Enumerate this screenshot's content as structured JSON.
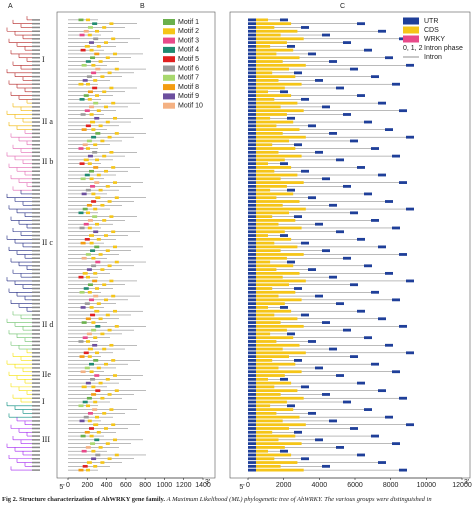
{
  "panels": {
    "a": "A",
    "b": "B",
    "c": "C"
  },
  "groups": [
    "I",
    "II a",
    "II b",
    "II c",
    "II d",
    "IIe",
    "I",
    "III"
  ],
  "motif_legend": [
    {
      "name": "Motif 1",
      "color": "#6ab04c"
    },
    {
      "name": "Motif 2",
      "color": "#f5c518"
    },
    {
      "name": "Motif 3",
      "color": "#e84a8a"
    },
    {
      "name": "Motif 4",
      "color": "#1f8a70"
    },
    {
      "name": "Motif 5",
      "color": "#e02020"
    },
    {
      "name": "Motif 6",
      "color": "#9a9a9a"
    },
    {
      "name": "Motif 7",
      "color": "#a8d86e"
    },
    {
      "name": "Motif 8",
      "color": "#f39c12"
    },
    {
      "name": "Motif 9",
      "color": "#6c4f9e"
    },
    {
      "name": "Motif 10",
      "color": "#f4b183"
    }
  ],
  "structure_legend": [
    {
      "name": "UTR",
      "color": "#1f3f99"
    },
    {
      "name": "CDS",
      "color": "#f5c518"
    },
    {
      "name": "WRKY",
      "color": "#e84a8a"
    }
  ],
  "intron_phase_label": "0, 1, 2",
  "intron_phase_text": "Intron phase",
  "intron_label": "Intron",
  "b_axis": {
    "ticks": [
      "0",
      "200",
      "400",
      "600",
      "800",
      "1000",
      "1200",
      "1400"
    ],
    "left": "5'",
    "right": "3'"
  },
  "c_axis": {
    "ticks": [
      "0",
      "2000",
      "4000",
      "6000",
      "8000",
      "10000",
      "12000"
    ],
    "left": "5'",
    "right": "3'"
  },
  "caption": {
    "label": "Fig 2.",
    "title": "Structure characterization of AhWRKY gene family.",
    "text": "A Maximum Likelihood (ML) phylogenetic tree of AhWRKY. The various groups were distinguished in"
  }
}
